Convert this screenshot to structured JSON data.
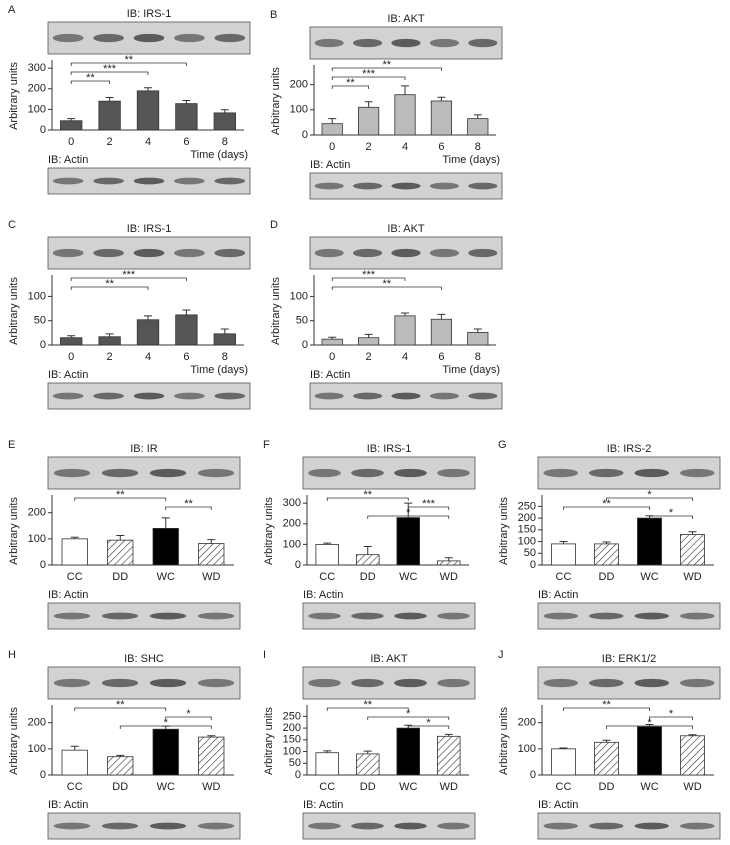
{
  "chart_data": [
    {
      "type": "bar",
      "label": "A",
      "title": "IB: IRS-1",
      "ylabel": "Arbitrary units",
      "xlabel": "Time (days)",
      "loading_label": "IB: Actin",
      "categories": [
        "0",
        "2",
        "4",
        "6",
        "8"
      ],
      "values": [
        45,
        140,
        190,
        128,
        83
      ],
      "errors": [
        10,
        18,
        15,
        15,
        15
      ],
      "color": "#555555",
      "ylim": [
        0,
        330
      ],
      "yticks": [
        0,
        100,
        200,
        300
      ],
      "brackets": [
        {
          "from": 0,
          "to": 3,
          "label": "**"
        },
        {
          "from": 0,
          "to": 2,
          "label": "***"
        },
        {
          "from": 0,
          "to": 1,
          "label": "**"
        }
      ]
    },
    {
      "type": "bar",
      "label": "B",
      "title": "IB: AKT",
      "ylabel": "Arbitrary units",
      "xlabel": "Time (days)",
      "loading_label": "IB: Actin",
      "categories": [
        "0",
        "2",
        "4",
        "6",
        "8"
      ],
      "values": [
        45,
        110,
        160,
        135,
        65
      ],
      "errors": [
        20,
        22,
        35,
        15,
        15
      ],
      "color": "#bbbbbb",
      "ylim": [
        0,
        270
      ],
      "yticks": [
        0,
        100,
        200
      ],
      "brackets": [
        {
          "from": 0,
          "to": 3,
          "label": "**"
        },
        {
          "from": 0,
          "to": 2,
          "label": "***"
        },
        {
          "from": 0,
          "to": 1,
          "label": "**"
        }
      ]
    },
    {
      "type": "bar",
      "label": "C",
      "title": "IB: IRS-1",
      "ylabel": "Arbitrary units",
      "xlabel": "Time (days)",
      "loading_label": "IB: Actin",
      "categories": [
        "0",
        "2",
        "4",
        "6",
        "8"
      ],
      "values": [
        15,
        17,
        52,
        62,
        23
      ],
      "errors": [
        4,
        6,
        8,
        10,
        10
      ],
      "color": "#555555",
      "ylim": [
        0,
        140
      ],
      "yticks": [
        0,
        50,
        100
      ],
      "brackets": [
        {
          "from": 0,
          "to": 3,
          "label": "***"
        },
        {
          "from": 0,
          "to": 2,
          "label": "**"
        }
      ]
    },
    {
      "type": "bar",
      "label": "D",
      "title": "IB: AKT",
      "ylabel": "Arbitrary units",
      "xlabel": "Time (days)",
      "loading_label": "IB: Actin",
      "categories": [
        "0",
        "2",
        "4",
        "6",
        "8"
      ],
      "values": [
        12,
        15,
        60,
        53,
        26
      ],
      "errors": [
        4,
        7,
        6,
        10,
        7
      ],
      "color": "#bbbbbb",
      "ylim": [
        0,
        140
      ],
      "yticks": [
        0,
        50,
        100
      ],
      "brackets": [
        {
          "from": 0,
          "to": 2,
          "label": "***"
        },
        {
          "from": 0,
          "to": 3,
          "label": "**"
        }
      ]
    },
    {
      "type": "bar",
      "label": "E",
      "title": "IB: IR",
      "ylabel": "Arbitrary units",
      "loading_label": "IB: Actin",
      "categories": [
        "CC",
        "DD",
        "WC",
        "WD"
      ],
      "values": [
        100,
        95,
        140,
        82
      ],
      "errors": [
        6,
        18,
        40,
        15
      ],
      "colors": [
        "#ffffff",
        "hatched",
        "#000000",
        "hatched"
      ],
      "ylim": [
        0,
        260
      ],
      "yticks": [
        0,
        100,
        200
      ],
      "brackets": [
        {
          "from": 0,
          "to": 2,
          "label": "**"
        },
        {
          "from": 2,
          "to": 3,
          "label": "**"
        }
      ]
    },
    {
      "type": "bar",
      "label": "F",
      "title": "IB: IRS-1",
      "ylabel": "Arbitrary units",
      "loading_label": "IB: Actin",
      "categories": [
        "CC",
        "DD",
        "WC",
        "WD"
      ],
      "values": [
        100,
        50,
        230,
        20
      ],
      "errors": [
        6,
        40,
        70,
        15
      ],
      "colors": [
        "#ffffff",
        "hatched",
        "#000000",
        "hatched"
      ],
      "ylim": [
        0,
        330
      ],
      "yticks": [
        0,
        100,
        200,
        300
      ],
      "brackets": [
        {
          "from": 0,
          "to": 2,
          "label": "**"
        },
        {
          "from": 2,
          "to": 3,
          "label": "***"
        },
        {
          "from": 1,
          "to": 3,
          "label": "*"
        }
      ]
    },
    {
      "type": "bar",
      "label": "G",
      "title": "IB: IRS-2",
      "ylabel": "Arbitrary units",
      "loading_label": "IB: Actin",
      "categories": [
        "CC",
        "DD",
        "WC",
        "WD"
      ],
      "values": [
        90,
        90,
        200,
        130
      ],
      "errors": [
        10,
        8,
        10,
        12
      ],
      "colors": [
        "#ffffff",
        "hatched",
        "#000000",
        "hatched"
      ],
      "ylim": [
        0,
        290
      ],
      "yticks": [
        0,
        50,
        100,
        150,
        200,
        250
      ],
      "brackets": [
        {
          "from": 1,
          "to": 3,
          "label": "*"
        },
        {
          "from": 0,
          "to": 2,
          "label": "**"
        },
        {
          "from": 2,
          "to": 3,
          "label": "*"
        }
      ]
    },
    {
      "type": "bar",
      "label": "H",
      "title": "IB: SHC",
      "ylabel": "Arbitrary units",
      "loading_label": "IB: Actin",
      "categories": [
        "CC",
        "DD",
        "WC",
        "WD"
      ],
      "values": [
        95,
        70,
        175,
        145
      ],
      "errors": [
        15,
        5,
        12,
        5
      ],
      "colors": [
        "#ffffff",
        "hatched",
        "#000000",
        "hatched"
      ],
      "ylim": [
        0,
        260
      ],
      "yticks": [
        0,
        100,
        200
      ],
      "brackets": [
        {
          "from": 0,
          "to": 2,
          "label": "**"
        },
        {
          "from": 2,
          "to": 3,
          "label": "*"
        },
        {
          "from": 1,
          "to": 3,
          "label": "*"
        }
      ]
    },
    {
      "type": "bar",
      "label": "I",
      "title": "IB: AKT",
      "ylabel": "Arbitrary units",
      "loading_label": "IB: Actin",
      "categories": [
        "CC",
        "DD",
        "WC",
        "WD"
      ],
      "values": [
        95,
        90,
        200,
        165
      ],
      "errors": [
        8,
        12,
        12,
        8
      ],
      "colors": [
        "#ffffff",
        "hatched",
        "#000000",
        "hatched"
      ],
      "ylim": [
        0,
        290
      ],
      "yticks": [
        0,
        50,
        100,
        150,
        200,
        250
      ],
      "brackets": [
        {
          "from": 0,
          "to": 2,
          "label": "**"
        },
        {
          "from": 1,
          "to": 3,
          "label": "*"
        },
        {
          "from": 2,
          "to": 3,
          "label": "*"
        }
      ]
    },
    {
      "type": "bar",
      "label": "J",
      "title": "IB: ERK1/2",
      "ylabel": "Arbitrary units",
      "loading_label": "IB: Actin",
      "categories": [
        "CC",
        "DD",
        "WC",
        "WD"
      ],
      "values": [
        100,
        125,
        185,
        150
      ],
      "errors": [
        3,
        8,
        8,
        4
      ],
      "colors": [
        "#ffffff",
        "hatched",
        "#000000",
        "hatched"
      ],
      "ylim": [
        0,
        260
      ],
      "yticks": [
        0,
        100,
        200
      ],
      "brackets": [
        {
          "from": 0,
          "to": 2,
          "label": "**"
        },
        {
          "from": 2,
          "to": 3,
          "label": "*"
        },
        {
          "from": 1,
          "to": 3,
          "label": "*"
        }
      ]
    }
  ]
}
